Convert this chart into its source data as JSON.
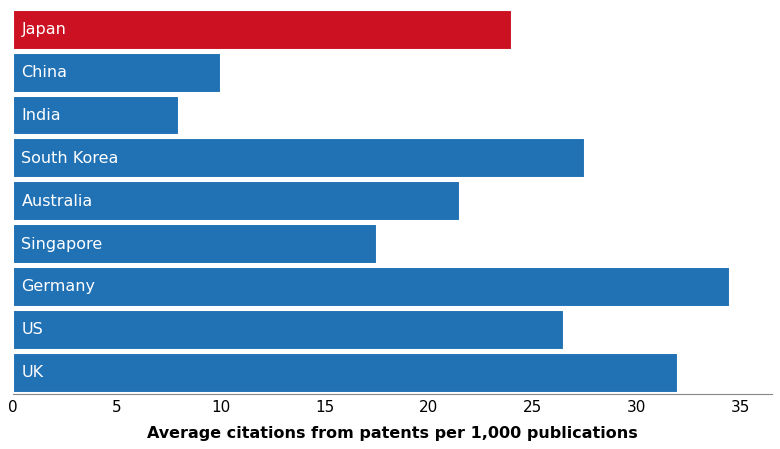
{
  "categories": [
    "Japan",
    "China",
    "India",
    "South Korea",
    "Australia",
    "Singapore",
    "Germany",
    "US",
    "UK"
  ],
  "values": [
    24.0,
    10.0,
    8.0,
    27.5,
    21.5,
    17.5,
    34.5,
    26.5,
    32.0
  ],
  "bar_colors": [
    "#cc1122",
    "#2171b5",
    "#2171b5",
    "#2171b5",
    "#2171b5",
    "#2171b5",
    "#2171b5",
    "#2171b5",
    "#2171b5"
  ],
  "xlabel": "Average citations from patents per 1,000 publications",
  "xlim": [
    0,
    36.5
  ],
  "xticks": [
    0,
    5,
    10,
    15,
    20,
    25,
    30,
    35
  ],
  "background_color": "#ffffff",
  "label_color": "#ffffff",
  "label_fontsize": 11.5,
  "xlabel_fontsize": 11.5,
  "tick_fontsize": 11,
  "bar_height": 0.93
}
